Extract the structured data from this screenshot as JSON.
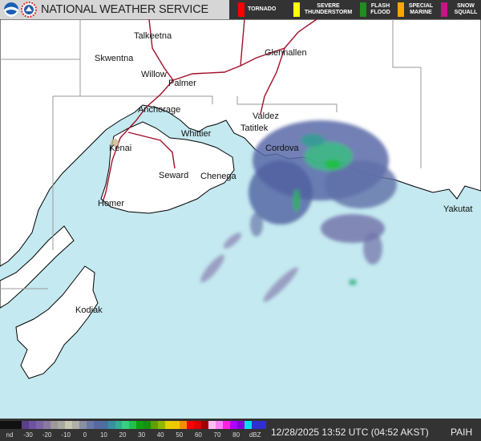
{
  "header": {
    "title": "NATIONAL WEATHER SERVICE",
    "logos": [
      "noaa-logo",
      "nws-logo"
    ],
    "warnings": [
      {
        "label": "TORNADO",
        "color": "#ff0000"
      },
      {
        "label": "SEVERE THUNDERSTORM",
        "color": "#ffff00"
      },
      {
        "label": "FLASH FLOOD",
        "color": "#228b22"
      },
      {
        "label": "SPECIAL MARINE",
        "color": "#ffa500"
      },
      {
        "label": "SNOW SQUALL",
        "color": "#c71585"
      }
    ]
  },
  "map": {
    "colors": {
      "water": "#c4e9f0",
      "land": "#ffffff",
      "coast": "#000000",
      "roads": "#a0102a",
      "borders": "#9a9a9a"
    },
    "cities": [
      "Talkeetna",
      "Skwentna",
      "Willow",
      "Palmer",
      "Glennallen",
      "Anchorage",
      "Valdez",
      "Tatitlek",
      "Whittier",
      "Kenai",
      "Cordova",
      "Seward",
      "Chenega",
      "Homer",
      "Yakutat",
      "Kodiak"
    ]
  },
  "legend": {
    "labels": [
      "nd",
      "-30",
      "-20",
      "-10",
      "0",
      "10",
      "20",
      "30",
      "40",
      "50",
      "60",
      "70",
      "80",
      "dBZ"
    ],
    "colors": [
      "#111111",
      "#111111",
      "#111111",
      "#5a3f8a",
      "#6f52a0",
      "#7a65a8",
      "#8a7aa0",
      "#9a9a9a",
      "#a8a8a0",
      "#c8c8b0",
      "#b0b0a8",
      "#8890a0",
      "#6878a8",
      "#5868a0",
      "#4a70a0",
      "#3890a0",
      "#30b090",
      "#38d080",
      "#20c050",
      "#10a010",
      "#189010",
      "#60a000",
      "#90b800",
      "#e8d000",
      "#f0c800",
      "#f09000",
      "#ff0000",
      "#e00000",
      "#a00000",
      "#ffc0f0",
      "#ff80ff",
      "#ff20e0",
      "#b000ff",
      "#8000e0",
      "#00e0f0",
      "#3030d0",
      "#3030d0"
    ],
    "timestamp": "12/28/2025 13:52 UTC (04:52 AKST)",
    "station": "PAIH"
  }
}
